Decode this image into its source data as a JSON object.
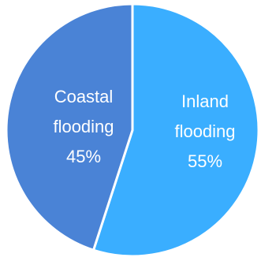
{
  "chart_data": {
    "type": "pie",
    "title": "",
    "slices": [
      {
        "label_lines": [
          "Coastal",
          "flooding",
          "45%"
        ],
        "value": 45,
        "color": "#4a83d6"
      },
      {
        "label_lines": [
          "Inland",
          "flooding",
          "55%"
        ],
        "value": 55,
        "color": "#3aaeff"
      }
    ],
    "separator_color": "#ffffff",
    "legend": "none"
  }
}
